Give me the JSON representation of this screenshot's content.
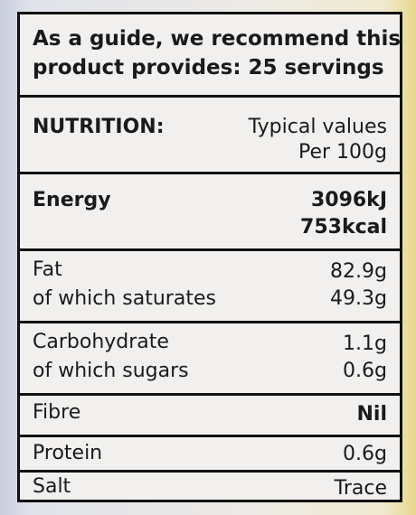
{
  "serving": {
    "line1": "As a guide, we recommend this",
    "line2": "product provides: 25 servings"
  },
  "header": {
    "title": "NUTRITION:",
    "values_label": "Typical values",
    "per_label": "Per 100g"
  },
  "rows": {
    "energy": {
      "label": "Energy",
      "kj": "3096kJ",
      "kcal": "753kcal"
    },
    "fat": {
      "label": "Fat",
      "value": "82.9g",
      "sub_label": "of which saturates",
      "sub_value": "49.3g"
    },
    "carbohydrate": {
      "label": "Carbohydrate",
      "value": "1.1g",
      "sub_label": "of which sugars",
      "sub_value": "0.6g"
    },
    "fibre": {
      "label": "Fibre",
      "value": "Nil"
    },
    "protein": {
      "label": "Protein",
      "value": "0.6g"
    },
    "salt": {
      "label": "Salt",
      "value": "Trace"
    }
  }
}
